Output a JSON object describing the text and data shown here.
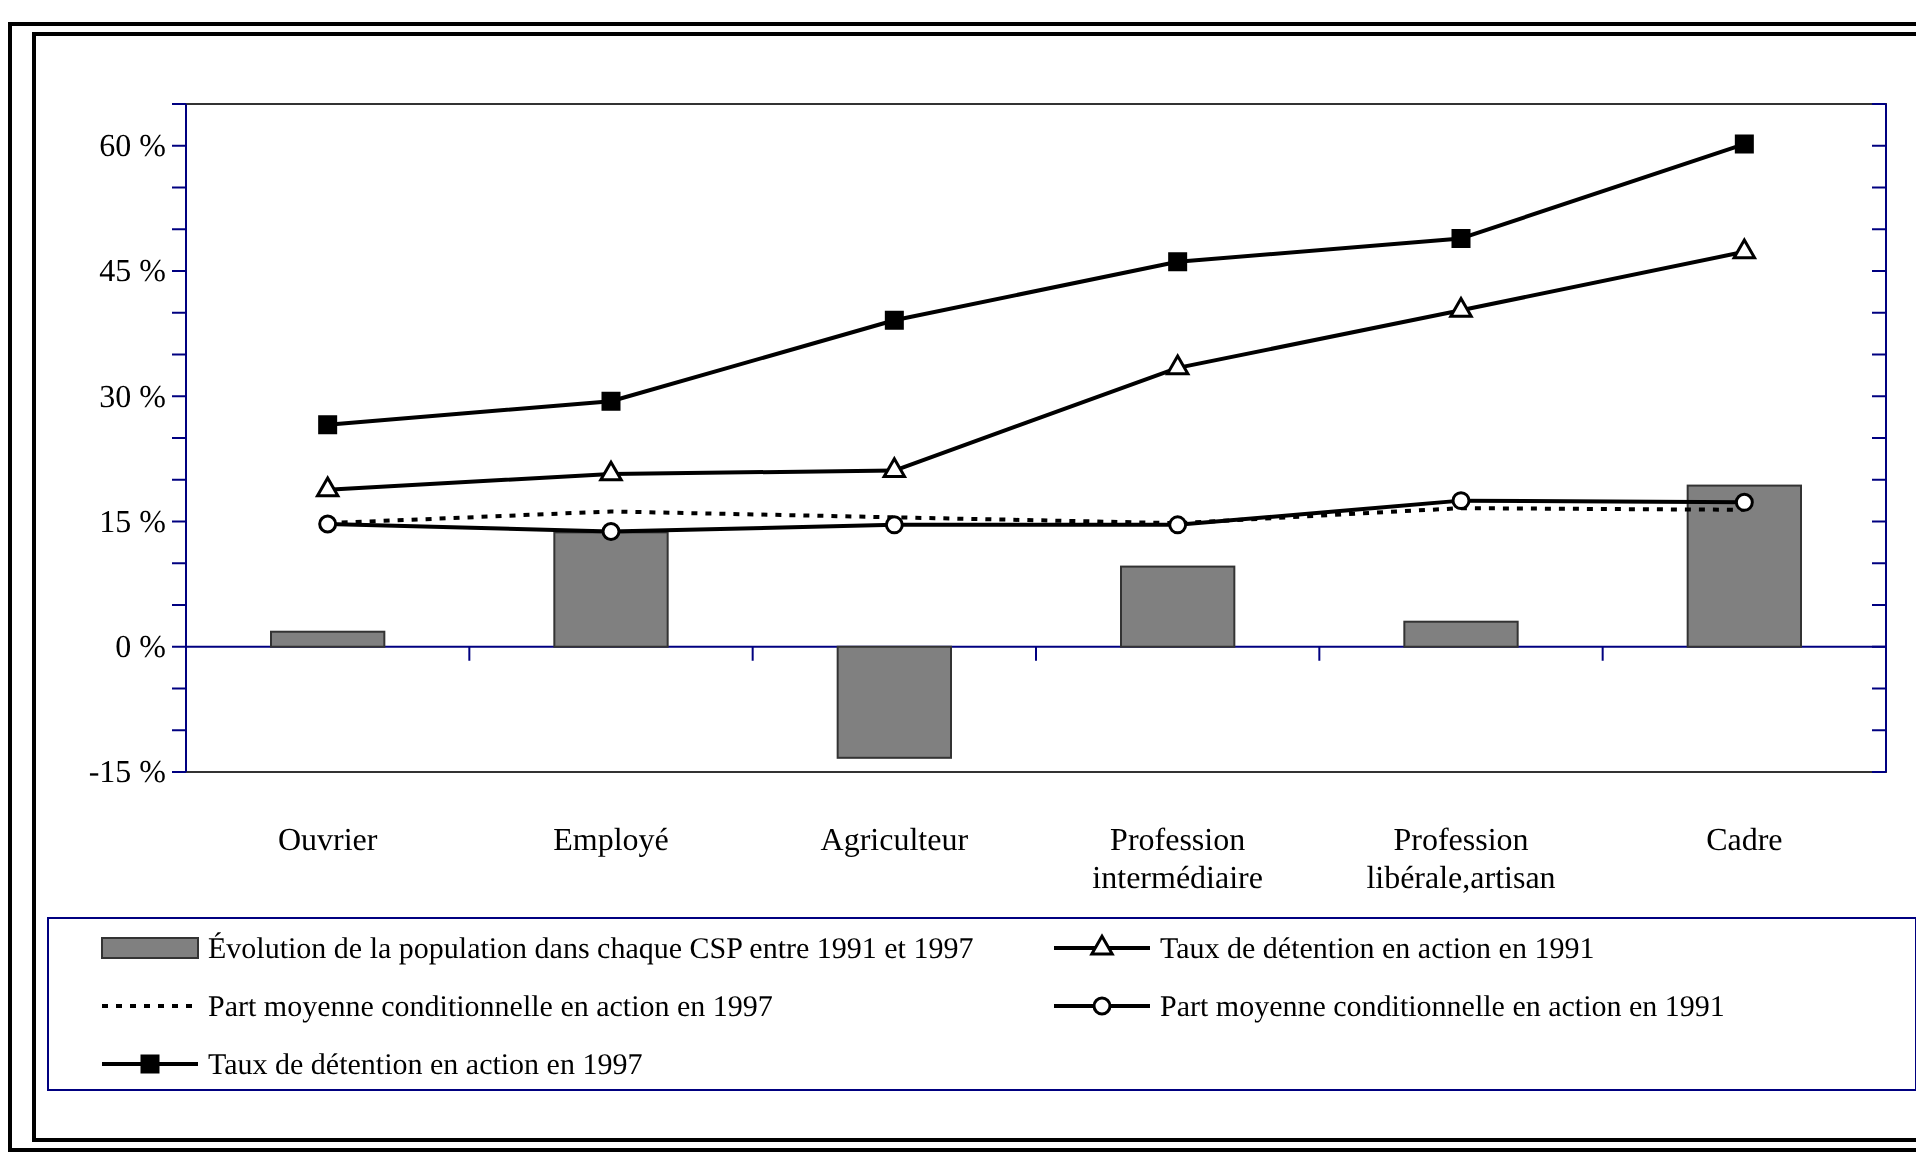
{
  "chart_data": {
    "type": "line",
    "categories": [
      "Ouvrier",
      "Employé",
      "Agriculteur",
      "Profession intermédiaire",
      "Profession libérale,artisan",
      "Cadre"
    ],
    "series": [
      {
        "name": "Évolution de la population dans chaque CSP entre 1991 et 1997",
        "type": "bar",
        "color": "#808080",
        "values": [
          1.8,
          13.7,
          -13.3,
          9.6,
          3.0,
          19.3
        ]
      },
      {
        "name": "Taux de détention en action en 1991",
        "color": "#000000",
        "marker": "triangle",
        "line_style": "solid",
        "values": [
          18.8,
          20.7,
          21.1,
          33.4,
          40.3,
          47.3
        ]
      },
      {
        "name": "Part moyenne conditionnelle en action en 1997",
        "color": "#000000",
        "marker": "none",
        "line_style": "dotted",
        "values": [
          14.8,
          16.2,
          15.5,
          14.8,
          16.6,
          16.4
        ]
      },
      {
        "name": "Part moyenne conditionnelle en action en 1991",
        "color": "#000000",
        "marker": "circle",
        "line_style": "solid",
        "values": [
          14.7,
          13.8,
          14.6,
          14.6,
          17.5,
          17.3
        ]
      },
      {
        "name": "Taux de détention en action en 1997",
        "color": "#000000",
        "marker": "square",
        "line_style": "solid",
        "values": [
          26.6,
          29.4,
          39.1,
          46.1,
          48.9,
          60.2
        ]
      }
    ],
    "ylim": [
      -15,
      65
    ],
    "yticks": [
      {
        "value": -15,
        "label": "-15 %"
      },
      {
        "value": -10,
        "label": null
      },
      {
        "value": -5,
        "label": null
      },
      {
        "value": 0,
        "label": "0 %"
      },
      {
        "value": 5,
        "label": null
      },
      {
        "value": 10,
        "label": null
      },
      {
        "value": 15,
        "label": "15 %"
      },
      {
        "value": 20,
        "label": null
      },
      {
        "value": 25,
        "label": null
      },
      {
        "value": 30,
        "label": "30 %"
      },
      {
        "value": 35,
        "label": null
      },
      {
        "value": 40,
        "label": null
      },
      {
        "value": 45,
        "label": "45 %"
      },
      {
        "value": 50,
        "label": null
      },
      {
        "value": 55,
        "label": null
      },
      {
        "value": 60,
        "label": "60 %"
      },
      {
        "value": 65,
        "label": null
      }
    ],
    "ref_lines": [
      {
        "axis": "y",
        "value": 0,
        "color": "#000080"
      }
    ],
    "legend": "bottom"
  }
}
